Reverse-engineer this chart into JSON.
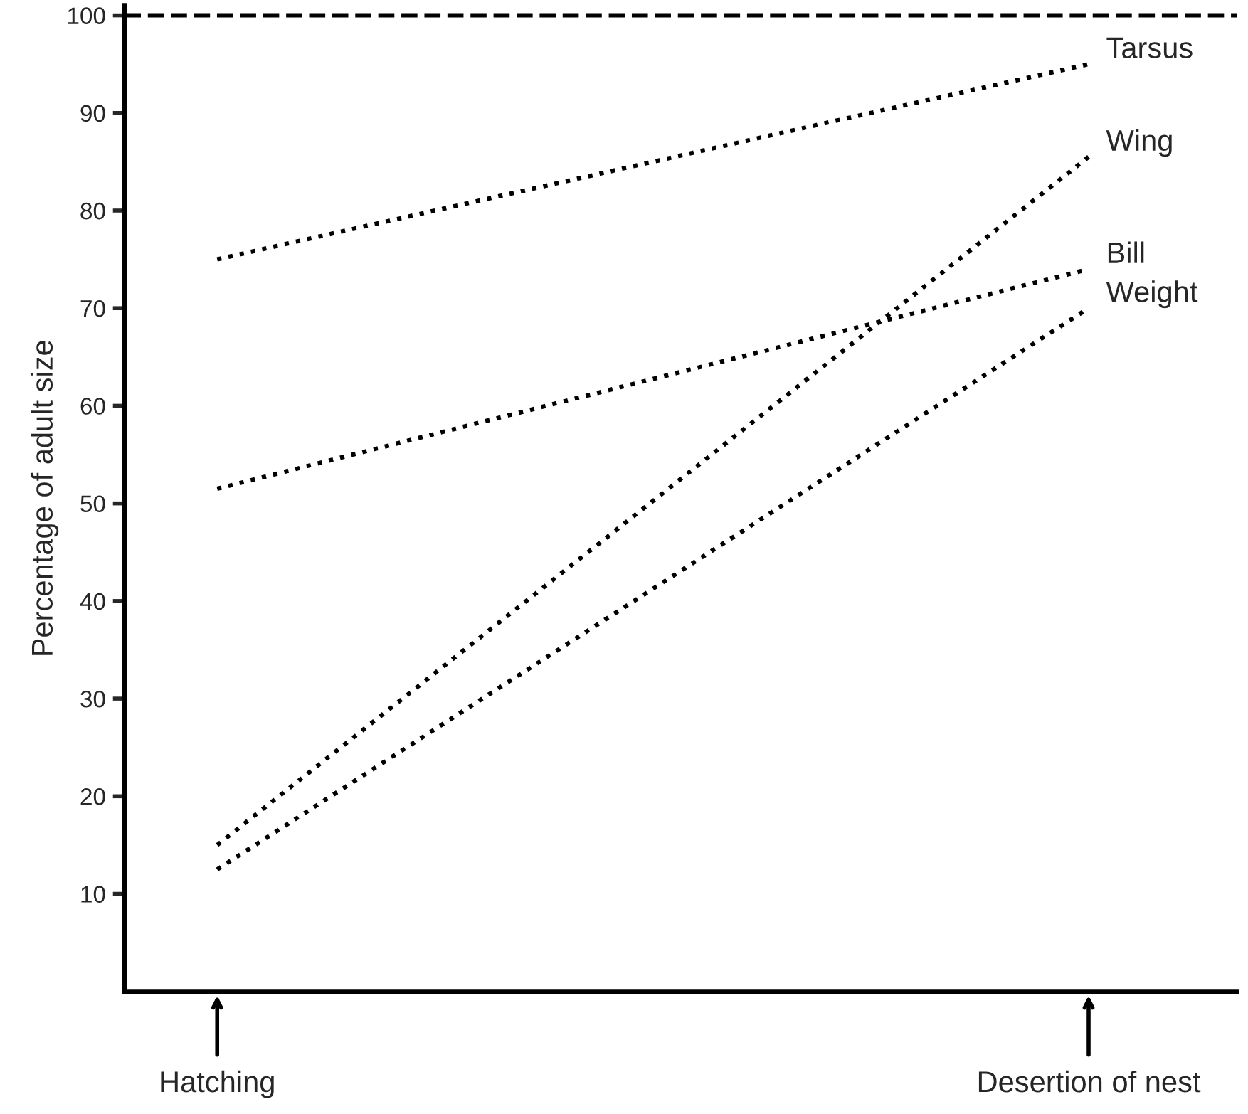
{
  "chart_data": {
    "type": "line",
    "ylabel": "Percentage of adult size",
    "categories": [
      "Hatching",
      "Desertion of nest"
    ],
    "series": [
      {
        "name": "Tarsus",
        "color": "#000000",
        "values": [
          75,
          95
        ]
      },
      {
        "name": "Wing",
        "color": "#000000",
        "values": [
          15,
          85.5
        ]
      },
      {
        "name": "Bill",
        "color": "#000000",
        "values": [
          51.5,
          74
        ]
      },
      {
        "name": "Weight",
        "color": "#000000",
        "values": [
          12.5,
          70
        ]
      }
    ],
    "ylim": [
      0,
      101
    ],
    "yticks": [
      10,
      20,
      30,
      40,
      50,
      60,
      70,
      80,
      90,
      100
    ],
    "ref_lines": [
      {
        "axis": "y",
        "value": 100,
        "color": "#000000",
        "line_style": "dashed"
      }
    ],
    "grid": false,
    "legend": false,
    "marker": "none",
    "line_style": "dotted"
  }
}
